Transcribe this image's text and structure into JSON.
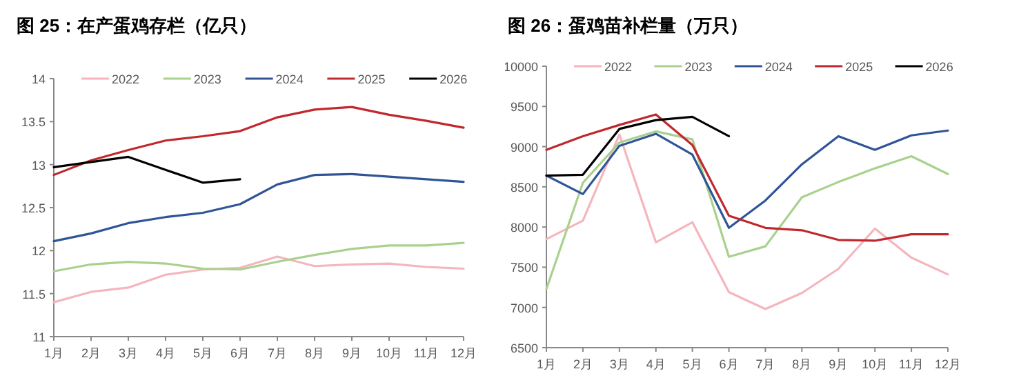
{
  "chart_data": [
    {
      "type": "line",
      "title": "图 25：在产蛋鸡存栏（亿只）",
      "categories": [
        "1月",
        "2月",
        "3月",
        "4月",
        "5月",
        "6月",
        "7月",
        "8月",
        "9月",
        "10月",
        "11月",
        "12月"
      ],
      "ylim": [
        11,
        14
      ],
      "yticks": [
        11,
        11.5,
        12,
        12.5,
        13,
        13.5,
        14
      ],
      "grid": false,
      "legend": "top",
      "series": [
        {
          "name": "2022",
          "color": "#f4b6bc",
          "values": [
            11.4,
            11.52,
            11.57,
            11.72,
            11.78,
            11.8,
            11.93,
            11.82,
            11.84,
            11.85,
            11.81,
            11.79
          ]
        },
        {
          "name": "2023",
          "color": "#a9d18e",
          "values": [
            11.76,
            11.84,
            11.87,
            11.85,
            11.79,
            11.78,
            11.87,
            11.95,
            12.02,
            12.06,
            12.06,
            12.09
          ]
        },
        {
          "name": "2024",
          "color": "#2f5597",
          "values": [
            12.11,
            12.2,
            12.32,
            12.39,
            12.44,
            12.54,
            12.77,
            12.88,
            12.89,
            12.86,
            12.83,
            12.8
          ]
        },
        {
          "name": "2025",
          "color": "#c0282d",
          "values": [
            12.88,
            13.05,
            13.17,
            13.28,
            13.33,
            13.39,
            13.55,
            13.64,
            13.67,
            13.58,
            13.51,
            13.43
          ]
        },
        {
          "name": "2026",
          "color": "#000000",
          "values": [
            12.97,
            13.03,
            13.09,
            12.94,
            12.79,
            12.83,
            null,
            null,
            null,
            null,
            null,
            null
          ]
        }
      ]
    },
    {
      "type": "line",
      "title": "图 26：蛋鸡苗补栏量（万只）",
      "categories": [
        "1月",
        "2月",
        "3月",
        "4月",
        "5月",
        "6月",
        "7月",
        "8月",
        "9月",
        "10月",
        "11月",
        "12月"
      ],
      "ylim": [
        6500,
        10000
      ],
      "yticks": [
        6500,
        7000,
        7500,
        8000,
        8500,
        9000,
        9500,
        10000
      ],
      "grid": false,
      "legend": "top",
      "series": [
        {
          "name": "2022",
          "color": "#f4b6bc",
          "values": [
            7850,
            8080,
            9150,
            7810,
            8060,
            7190,
            6980,
            7180,
            7480,
            7980,
            7620,
            7410
          ]
        },
        {
          "name": "2023",
          "color": "#a9d18e",
          "values": [
            7230,
            8550,
            9050,
            9190,
            9090,
            7630,
            7760,
            8370,
            8560,
            8730,
            8880,
            8660
          ]
        },
        {
          "name": "2024",
          "color": "#2f5597",
          "values": [
            8640,
            8410,
            9010,
            9160,
            8900,
            7990,
            8330,
            8780,
            9130,
            8960,
            9140,
            9200
          ]
        },
        {
          "name": "2025",
          "color": "#c0282d",
          "values": [
            8960,
            9130,
            9270,
            9400,
            9020,
            8140,
            7990,
            7960,
            7840,
            7830,
            7910,
            7910
          ]
        },
        {
          "name": "2026",
          "color": "#000000",
          "values": [
            8640,
            8650,
            9220,
            9330,
            9370,
            9130,
            null,
            null,
            null,
            null,
            null,
            null
          ]
        }
      ]
    }
  ]
}
